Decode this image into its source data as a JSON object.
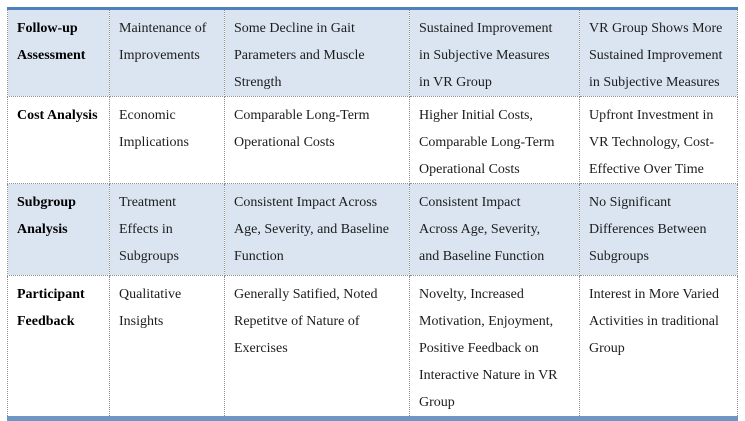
{
  "colors": {
    "top_border": "#4e80bc",
    "bottom_border": "#6e95c3",
    "row_shade": "#dbe5f1",
    "grid_dotted": "#8f8f8f",
    "text": "#1c1c1c"
  },
  "table": {
    "rows": [
      {
        "shaded": true,
        "label": "Follow-up\nAssessment",
        "cells": [
          "Maintenance of\nImprovements",
          "Some Decline in Gait\nParameters and Muscle\nStrength",
          "Sustained Improvement\nin Subjective Measures\nin VR Group",
          "VR Group Shows More\nSustained Improvement\nin Subjective Measures"
        ]
      },
      {
        "shaded": false,
        "label": "Cost Analysis",
        "cells": [
          "Economic\nImplications",
          "Comparable Long-Term\nOperational Costs",
          "Higher Initial Costs,\nComparable Long-Term\nOperational Costs",
          "Upfront Investment in\nVR Technology, Cost-\nEffective Over Time"
        ]
      },
      {
        "shaded": true,
        "label": "Subgroup\nAnalysis",
        "cells": [
          "Treatment\nEffects in\nSubgroups",
          "Consistent Impact Across\nAge, Severity, and Baseline\nFunction",
          "Consistent Impact\nAcross Age, Severity,\nand Baseline Function",
          "No Significant\nDifferences Between\nSubgroups"
        ]
      },
      {
        "shaded": false,
        "label": "Participant\nFeedback",
        "cells": [
          "Qualitative\nInsights",
          "Generally Satified, Noted\nRepetitve of Nature of\nExercises",
          "Novelty, Increased\nMotivation, Enjoyment,\nPositive Feedback on\nInteractive Nature in VR\nGroup",
          "Interest in More Varied\nActivities in traditional\nGroup"
        ]
      }
    ]
  }
}
